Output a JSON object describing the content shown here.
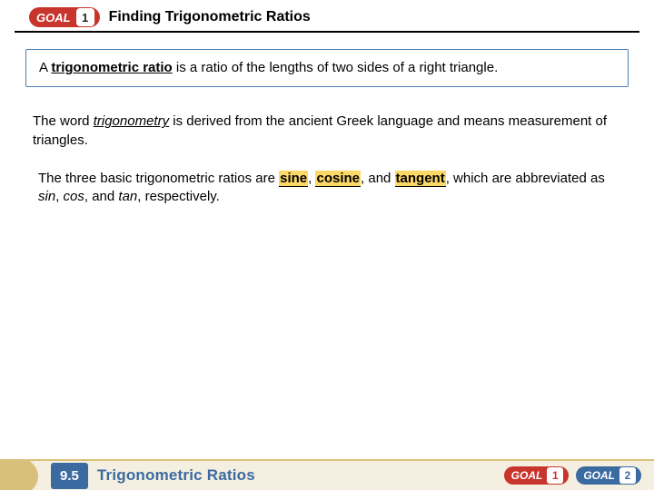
{
  "header": {
    "goal_label": "GOAL",
    "goal_number": "1",
    "title": "Finding Trigonometric Ratios"
  },
  "box": {
    "pre": "A ",
    "bold": "trigonometric ratio",
    "post": " is a ratio of the lengths of two sides of a right triangle."
  },
  "para1": {
    "pre": "The word ",
    "italic": "trigonometry",
    "post": " is derived from the ancient Greek language and means measurement of triangles."
  },
  "para2": {
    "pre": "The three basic trigonometric ratios are ",
    "h1": "sine",
    "sep1": ", ",
    "h2": "cosine",
    "sep2": ", and ",
    "h3": "tangent",
    "mid": ", which are abbreviated as ",
    "a1": "sin",
    "c1": ", ",
    "a2": "cos",
    "c2": ", and ",
    "a3": "tan",
    "end": ", respectively."
  },
  "footer": {
    "section_number": "9.5",
    "section_title": "Trigonometric Ratios",
    "goal1_label": "GOAL",
    "goal1_num": "1",
    "goal2_label": "GOAL",
    "goal2_num": "2"
  },
  "colors": {
    "red": "#c8352d",
    "blue": "#3b6aa0",
    "highlight": "#fcd867",
    "footer_bg": "#f4efe0",
    "footer_accent": "#d9c07a",
    "box_border": "#4a7fb0"
  }
}
